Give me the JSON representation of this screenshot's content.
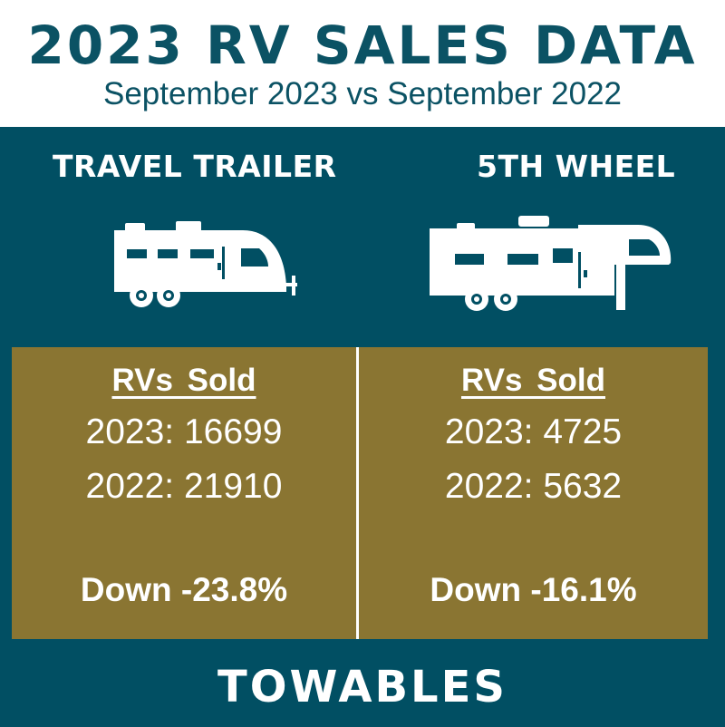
{
  "header": {
    "title": "2023 RV SALES DATA",
    "subtitle": "September 2023 vs September 2022"
  },
  "categories": [
    {
      "label": "TRAVEL TRAILER",
      "icon": "travel-trailer-icon",
      "heading": "RVs Sold",
      "line_2023": "2023: 16699",
      "line_2022": "2022: 21910",
      "change": "Down -23.8%"
    },
    {
      "label": "5TH WHEEL",
      "icon": "fifth-wheel-icon",
      "heading": "RVs Sold",
      "line_2023": "2023: 4725",
      "line_2022": "2022: 5632",
      "change": "Down -16.1%"
    }
  ],
  "footer": {
    "label": "TOWABLES"
  },
  "colors": {
    "teal": "#014f63",
    "title_teal": "#0b5264",
    "gold": "#8a7532",
    "white": "#ffffff"
  }
}
